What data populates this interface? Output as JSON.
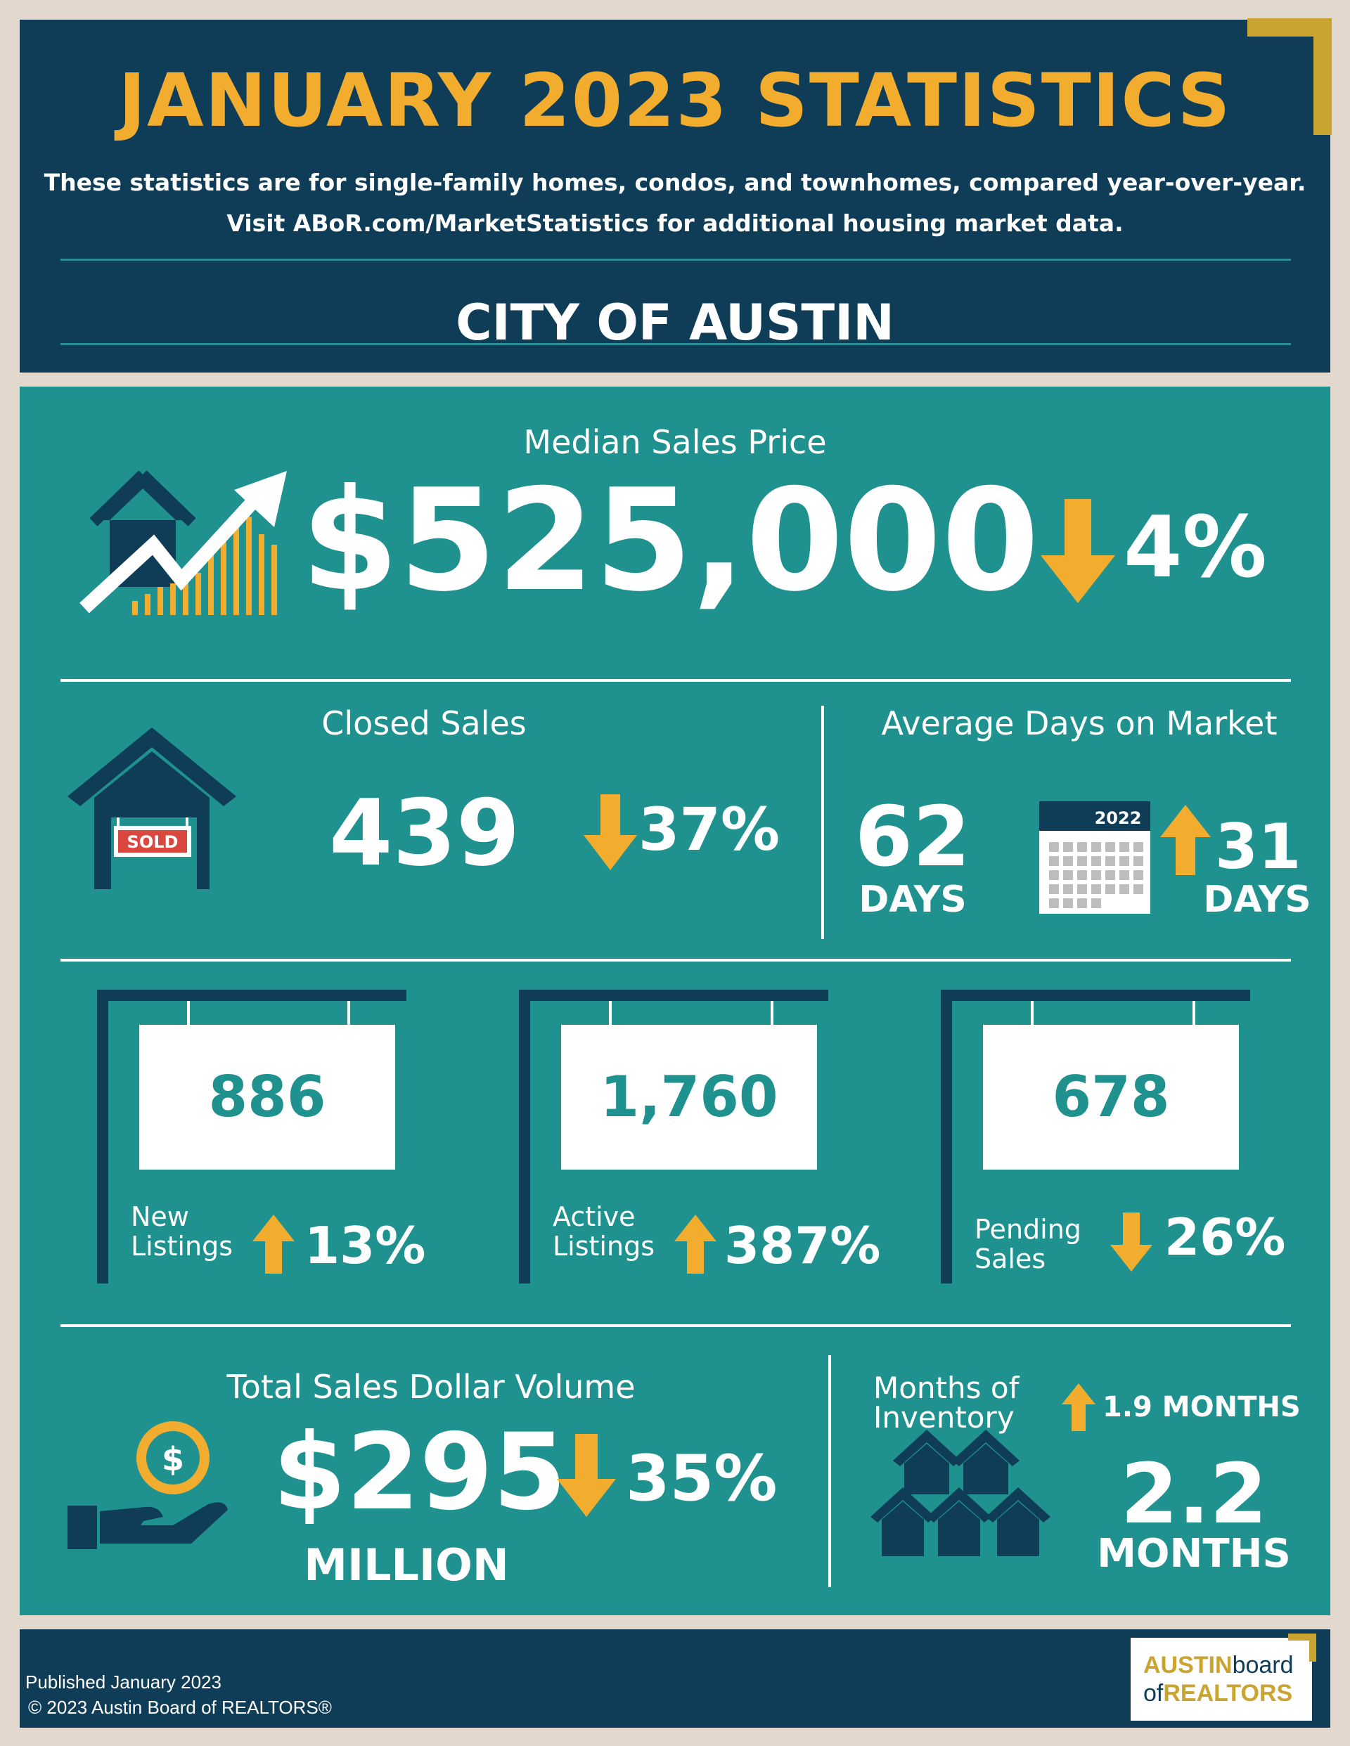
{
  "header": {
    "title": "JANUARY 2023 STATISTICS",
    "subtitle_line_1": "These statistics are for single-family homes, condos, and townhomes, compared year-over-year.",
    "subtitle_line_2": "Visit ABoR.com/MarketStatistics for additional housing market data.",
    "region": "CITY OF AUSTIN"
  },
  "median_sales_price": {
    "label": "Median Sales Price",
    "value": "$525,000",
    "change": "4%",
    "direction": "down"
  },
  "closed_sales": {
    "label": "Closed Sales",
    "value": "439",
    "change": "37%",
    "direction": "down",
    "sign_text": "SOLD"
  },
  "days_on_market": {
    "label": "Average Days on Market",
    "value": "62",
    "value_unit": "DAYS",
    "calendar_year": "2022",
    "change": "31",
    "change_unit": "DAYS",
    "direction": "up"
  },
  "listings": [
    {
      "value": "886",
      "label_line_1": "New",
      "label_line_2": "Listings",
      "change": "13%",
      "direction": "up"
    },
    {
      "value": "1,760",
      "label_line_1": "Active",
      "label_line_2": "Listings",
      "change": "387%",
      "direction": "up"
    },
    {
      "value": "678",
      "label_line_1": "Pending",
      "label_line_2": "Sales",
      "change": "26%",
      "direction": "down"
    }
  ],
  "sales_volume": {
    "label": "Total Sales Dollar Volume",
    "value": "$295",
    "value_unit": "MILLION",
    "change": "35%",
    "direction": "down"
  },
  "inventory": {
    "label_line_1": "Months of",
    "label_line_2": "Inventory",
    "change": "1.9 MONTHS",
    "direction": "up",
    "value": "2.2",
    "value_unit": "MONTHS"
  },
  "footer": {
    "published": "Published January 2023",
    "copyright": "© 2023 Austin Board of REALTORS®",
    "logo_austin": "AUSTIN",
    "logo_board": "board",
    "logo_of": "of",
    "logo_realtors": "REALTORS"
  },
  "colors": {
    "navy": "#0f3d58",
    "teal": "#1f918f",
    "gold": "#f2ad2e",
    "red": "#d9473e"
  }
}
